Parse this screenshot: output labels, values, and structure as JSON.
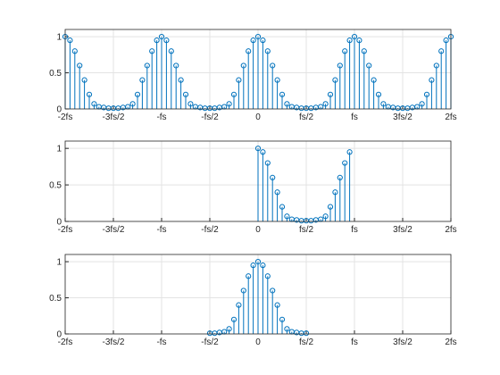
{
  "chart_data": [
    {
      "type": "stem",
      "color": "#0072bd",
      "grid": true,
      "xlim": [
        -2,
        2
      ],
      "ylim": [
        0,
        1.1
      ],
      "yticks": [
        0,
        0.5,
        1
      ],
      "xticks": [
        {
          "value": -2,
          "label": "-2fs"
        },
        {
          "value": -1.5,
          "label": "-3fs/2"
        },
        {
          "value": -1,
          "label": "-fs"
        },
        {
          "value": -0.5,
          "label": "-fs/2"
        },
        0,
        {
          "value": 0.5,
          "label": "fs/2"
        },
        {
          "value": 1,
          "label": "fs"
        },
        {
          "value": 1.5,
          "label": "3fs/2"
        },
        {
          "value": 2,
          "label": "2fs"
        }
      ],
      "x": [
        -2,
        -1.95,
        -1.9,
        -1.85,
        -1.8,
        -1.75,
        -1.7,
        -1.65,
        -1.6,
        -1.55,
        -1.5,
        -1.45,
        -1.4,
        -1.35,
        -1.3,
        -1.25,
        -1.2,
        -1.15,
        -1.1,
        -1.05,
        -1,
        -0.95,
        -0.9,
        -0.85,
        -0.8,
        -0.75,
        -0.7,
        -0.65,
        -0.6,
        -0.55,
        -0.5,
        -0.45,
        -0.4,
        -0.35,
        -0.3,
        -0.25,
        -0.2,
        -0.15,
        -0.1,
        -0.05,
        0,
        0.05,
        0.1,
        0.15,
        0.2,
        0.25,
        0.3,
        0.35,
        0.4,
        0.45,
        0.5,
        0.55,
        0.6,
        0.65,
        0.7,
        0.75,
        0.8,
        0.85,
        0.9,
        0.95,
        1,
        1.05,
        1.1,
        1.15,
        1.2,
        1.25,
        1.3,
        1.35,
        1.4,
        1.45,
        1.5,
        1.55,
        1.6,
        1.65,
        1.7,
        1.75,
        1.8,
        1.85,
        1.9,
        1.95,
        2
      ],
      "values": [
        1,
        0.95,
        0.8,
        0.6,
        0.4,
        0.2,
        0.07,
        0.03,
        0.02,
        0.01,
        0.01,
        0.01,
        0.02,
        0.03,
        0.07,
        0.2,
        0.4,
        0.6,
        0.8,
        0.95,
        1,
        0.95,
        0.8,
        0.6,
        0.4,
        0.2,
        0.07,
        0.03,
        0.02,
        0.01,
        0.01,
        0.01,
        0.02,
        0.03,
        0.07,
        0.2,
        0.4,
        0.6,
        0.8,
        0.95,
        1,
        0.95,
        0.8,
        0.6,
        0.4,
        0.2,
        0.07,
        0.03,
        0.02,
        0.01,
        0.01,
        0.01,
        0.02,
        0.03,
        0.07,
        0.2,
        0.4,
        0.6,
        0.8,
        0.95,
        1,
        0.95,
        0.8,
        0.6,
        0.4,
        0.2,
        0.07,
        0.03,
        0.02,
        0.01,
        0.01,
        0.01,
        0.02,
        0.03,
        0.07,
        0.2,
        0.4,
        0.6,
        0.8,
        0.95,
        1
      ]
    },
    {
      "type": "stem",
      "color": "#0072bd",
      "grid": true,
      "xlim": [
        -2,
        2
      ],
      "ylim": [
        0,
        1.1
      ],
      "yticks": [
        0,
        0.5,
        1
      ],
      "xticks": [
        {
          "value": -2,
          "label": "-2fs"
        },
        {
          "value": -1.5,
          "label": "-3fs/2"
        },
        {
          "value": -1,
          "label": "-fs"
        },
        {
          "value": -0.5,
          "label": "-fs/2"
        },
        0,
        {
          "value": 0.5,
          "label": "fs/2"
        },
        {
          "value": 1,
          "label": "fs"
        },
        {
          "value": 1.5,
          "label": "3fs/2"
        },
        {
          "value": 2,
          "label": "2fs"
        }
      ],
      "x": [
        0,
        0.05,
        0.1,
        0.15,
        0.2,
        0.25,
        0.3,
        0.35,
        0.4,
        0.45,
        0.5,
        0.55,
        0.6,
        0.65,
        0.7,
        0.75,
        0.8,
        0.85,
        0.9,
        0.95
      ],
      "values": [
        1,
        0.95,
        0.8,
        0.6,
        0.4,
        0.2,
        0.07,
        0.03,
        0.02,
        0.01,
        0.01,
        0.01,
        0.02,
        0.03,
        0.07,
        0.2,
        0.4,
        0.6,
        0.8,
        0.95
      ]
    },
    {
      "type": "stem",
      "color": "#0072bd",
      "grid": true,
      "xlim": [
        -2,
        2
      ],
      "ylim": [
        0,
        1.1
      ],
      "yticks": [
        0,
        0.5,
        1
      ],
      "xticks": [
        {
          "value": -2,
          "label": "-2fs"
        },
        {
          "value": -1.5,
          "label": "-3fs/2"
        },
        {
          "value": -1,
          "label": "-fs"
        },
        {
          "value": -0.5,
          "label": "-fs/2"
        },
        0,
        {
          "value": 0.5,
          "label": "fs/2"
        },
        {
          "value": 1,
          "label": "fs"
        },
        {
          "value": 1.5,
          "label": "3fs/2"
        },
        {
          "value": 2,
          "label": "2fs"
        }
      ],
      "x": [
        -0.5,
        -0.45,
        -0.4,
        -0.35,
        -0.3,
        -0.25,
        -0.2,
        -0.15,
        -0.1,
        -0.05,
        0,
        0.05,
        0.1,
        0.15,
        0.2,
        0.25,
        0.3,
        0.35,
        0.4,
        0.45,
        0.5
      ],
      "values": [
        0.01,
        0.01,
        0.02,
        0.03,
        0.07,
        0.2,
        0.4,
        0.6,
        0.8,
        0.95,
        1,
        0.95,
        0.8,
        0.6,
        0.4,
        0.2,
        0.07,
        0.03,
        0.02,
        0.01,
        0.01
      ]
    }
  ]
}
